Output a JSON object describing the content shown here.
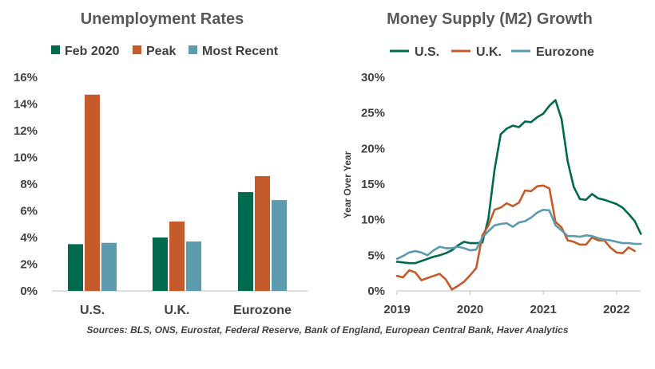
{
  "chart_data": [
    {
      "type": "bar",
      "title": "Unemployment Rates",
      "categories": [
        "U.S.",
        "U.K.",
        "Eurozone"
      ],
      "series": [
        {
          "name": "Feb 2020",
          "color": "#006a4e",
          "values": [
            3.5,
            4.0,
            7.4
          ]
        },
        {
          "name": "Peak",
          "color": "#c55a2b",
          "values": [
            14.7,
            5.2,
            8.6
          ]
        },
        {
          "name": "Most Recent",
          "color": "#5b9bad",
          "values": [
            3.6,
            3.7,
            6.8
          ]
        }
      ],
      "ylim": [
        0,
        16
      ],
      "yticks": [
        0,
        2,
        4,
        6,
        8,
        10,
        12,
        14,
        16
      ],
      "ytick_labels": [
        "0%",
        "2%",
        "4%",
        "6%",
        "8%",
        "10%",
        "12%",
        "14%",
        "16%"
      ],
      "xlabel": "",
      "ylabel": ""
    },
    {
      "type": "line",
      "title": "Money Supply (M2) Growth",
      "ylabel": "Year Over Year",
      "xlabel": "",
      "xlim": [
        2019,
        2022.33
      ],
      "ylim": [
        0,
        30
      ],
      "yticks": [
        0,
        5,
        10,
        15,
        20,
        25,
        30
      ],
      "ytick_labels": [
        "0%",
        "5%",
        "10%",
        "15%",
        "20%",
        "25%",
        "30%"
      ],
      "xticks": [
        2019,
        2020,
        2021,
        2022
      ],
      "xtick_labels": [
        "2019",
        "2020",
        "2021",
        "2022"
      ],
      "x_start": 2019.0,
      "x_step": 0.0833333,
      "series": [
        {
          "name": "U.S.",
          "color": "#006a4e",
          "values": [
            4.1,
            4.0,
            3.9,
            3.9,
            4.2,
            4.5,
            4.8,
            5.0,
            5.3,
            5.7,
            6.4,
            6.9,
            6.7,
            6.7,
            6.8,
            10.2,
            17.0,
            22.0,
            22.8,
            23.2,
            23.0,
            23.8,
            23.7,
            24.4,
            24.9,
            26.0,
            26.8,
            24.1,
            18.2,
            14.6,
            12.9,
            12.8,
            13.6,
            13.0,
            12.8,
            12.5,
            12.2,
            11.7,
            10.8,
            9.8,
            8.0
          ]
        },
        {
          "name": "U.K.",
          "color": "#c55a2b",
          "values": [
            2.1,
            1.9,
            2.9,
            2.6,
            1.5,
            1.8,
            2.1,
            2.4,
            1.6,
            0.2,
            0.7,
            1.3,
            2.2,
            3.2,
            7.8,
            9.2,
            11.4,
            11.7,
            12.3,
            11.9,
            12.4,
            14.1,
            14.0,
            14.7,
            14.8,
            14.4,
            9.7,
            8.9,
            7.1,
            6.9,
            6.5,
            6.5,
            7.5,
            7.1,
            7.1,
            6.1,
            5.4,
            5.3,
            6.1,
            5.6
          ]
        },
        {
          "name": "Eurozone",
          "color": "#5b9bad",
          "values": [
            4.5,
            4.9,
            5.4,
            5.6,
            5.4,
            5.0,
            5.7,
            6.2,
            6.0,
            6.0,
            6.2,
            6.0,
            5.7,
            5.8,
            7.5,
            8.4,
            9.2,
            9.4,
            9.5,
            9.0,
            9.6,
            9.8,
            10.3,
            11.0,
            11.4,
            11.3,
            9.2,
            8.5,
            7.7,
            7.7,
            7.6,
            7.8,
            7.7,
            7.4,
            7.2,
            7.1,
            6.9,
            6.7,
            6.7,
            6.6,
            6.6
          ]
        }
      ]
    }
  ],
  "source_text": "Sources: BLS, ONS, Eurostat, Federal Reserve, Bank of England,  European Central Bank, Haver Analytics"
}
